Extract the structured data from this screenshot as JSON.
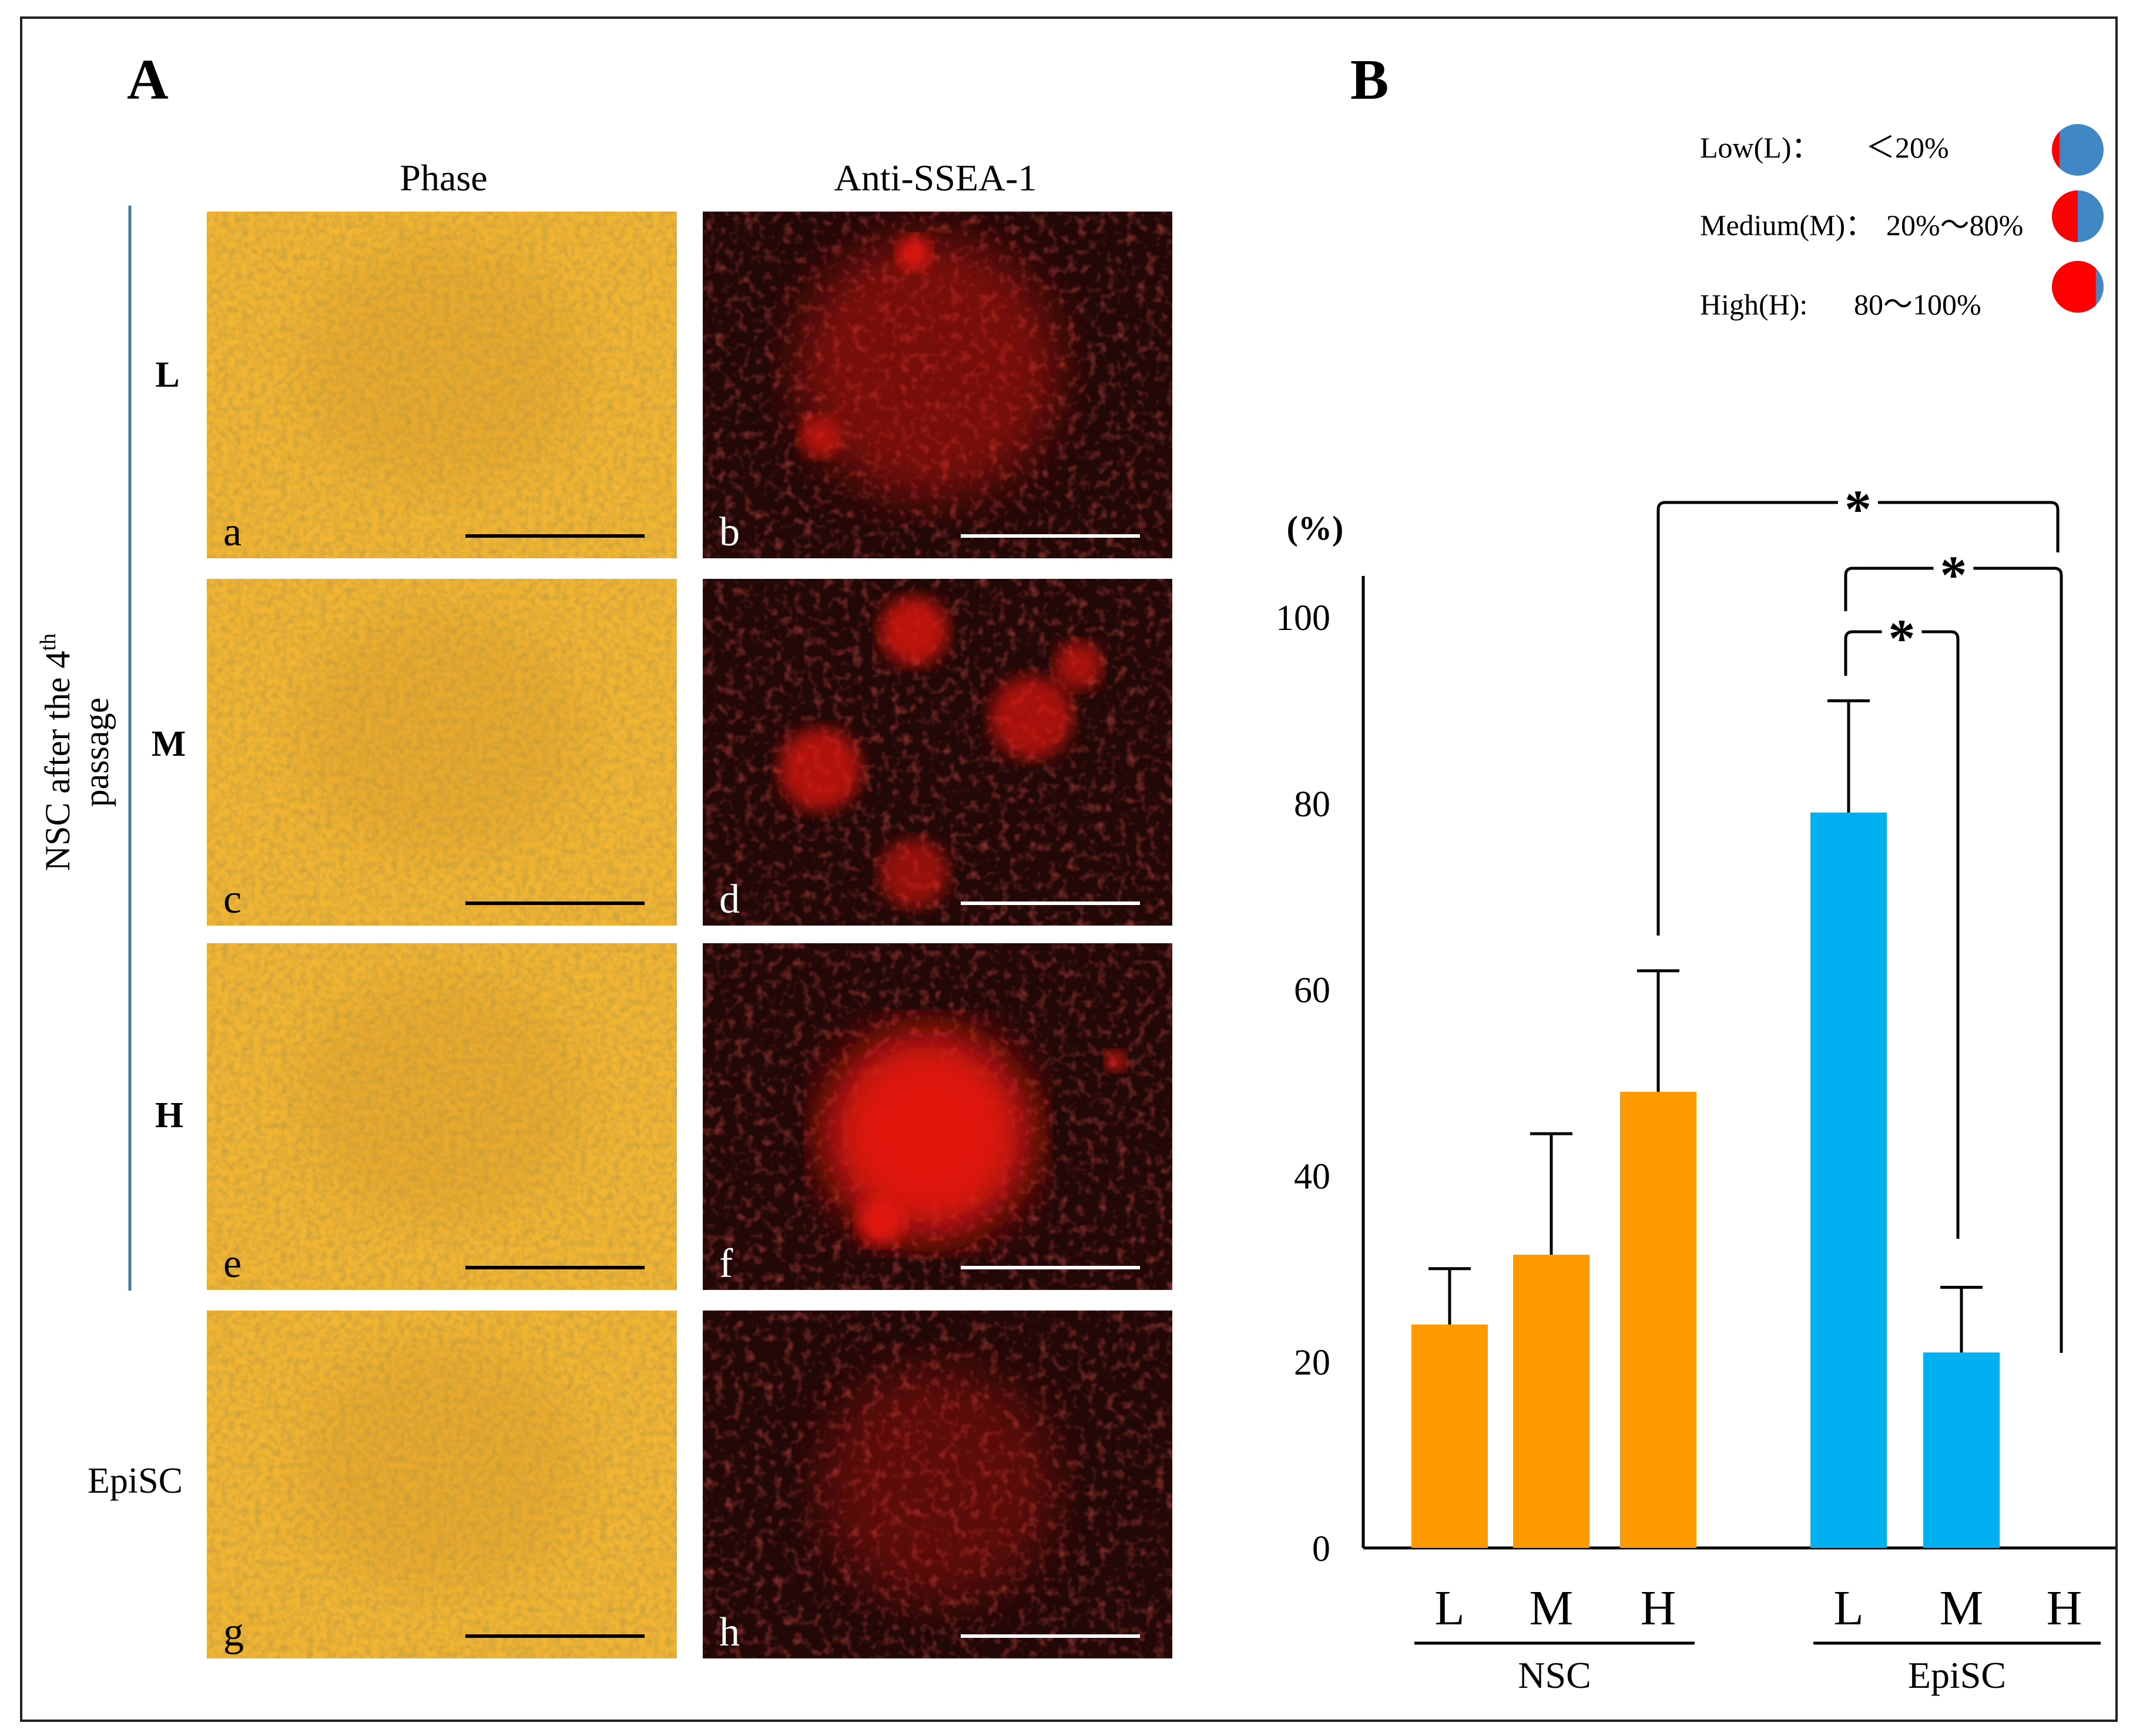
{
  "panel_a": {
    "label": "A",
    "col_headers": [
      "Phase",
      "Anti-SSEA-1"
    ],
    "row_labels": [
      "L",
      "M",
      "H",
      "EpiSC"
    ],
    "side_label_line1": "NSC after the 4",
    "side_label_sup": "th",
    "side_label_line2": "passage",
    "image_letters": [
      "a",
      "b",
      "c",
      "d",
      "e",
      "f",
      "g",
      "h"
    ]
  },
  "panel_b": {
    "label": "B",
    "legend": [
      {
        "label": "Low(L)：",
        "range": "＜20%",
        "red_fraction": 0.15
      },
      {
        "label": "Medium(M)：",
        "range": "20%～80%",
        "red_fraction": 0.5
      },
      {
        "label": "High(H):",
        "range": "80～100%",
        "red_fraction": 0.85
      }
    ],
    "significance_marks": [
      "*",
      "*",
      "*"
    ]
  },
  "colors": {
    "nsc_bar": "#FF9900",
    "episc_bar": "#00B0F0",
    "legend_blue": "#3F88C5",
    "legend_red": "#FF0000",
    "phase_bg": "#F2B531",
    "fluor_bg": "#230808",
    "fluor_signal": "#E0140F",
    "side_line": "#3F7C9E"
  },
  "chart_data": {
    "type": "bar",
    "title": "",
    "ylabel": "(%)",
    "xlabel": "",
    "ylim": [
      0,
      100
    ],
    "yticks": [
      "0",
      "20",
      "40",
      "60",
      "80",
      "100"
    ],
    "groups": [
      {
        "name": "NSC",
        "categories": [
          "L",
          "M",
          "H"
        ],
        "values": [
          24,
          31.5,
          49
        ],
        "errors": [
          6,
          13,
          13
        ],
        "color": "#FF9900"
      },
      {
        "name": "EpiSC",
        "categories": [
          "L",
          "M",
          "H"
        ],
        "values": [
          79,
          21,
          0
        ],
        "errors": [
          12,
          7,
          0
        ],
        "color": "#00B0F0"
      }
    ]
  }
}
